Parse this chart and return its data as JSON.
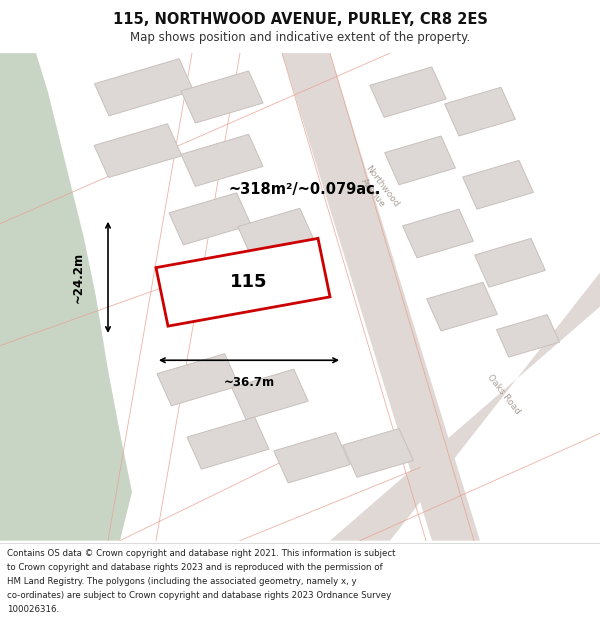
{
  "title": "115, NORTHWOOD AVENUE, PURLEY, CR8 2ES",
  "subtitle": "Map shows position and indicative extent of the property.",
  "area_label": "~318m²/~0.079ac.",
  "width_label": "~36.7m",
  "height_label": "~24.2m",
  "plot_number": "115",
  "map_bg": "#f2efed",
  "green_color": "#c8d5c5",
  "road_fill": "#e5dcd8",
  "building_color": "#ddd8d5",
  "building_outline": "#c8c0bc",
  "plot_outline": "#cc0000",
  "plot_fill": "#ffffff",
  "road_label_color": "#aaa098",
  "title_color": "#111111",
  "subtitle_color": "#333333",
  "footer_lines": [
    "Contains OS data © Crown copyright and database right 2021. This information is subject",
    "to Crown copyright and database rights 2023 and is reproduced with the permission of",
    "HM Land Registry. The polygons (including the associated geometry, namely x, y",
    "co-ordinates) are subject to Crown copyright and database rights 2023 Ordnance Survey",
    "100026316."
  ]
}
